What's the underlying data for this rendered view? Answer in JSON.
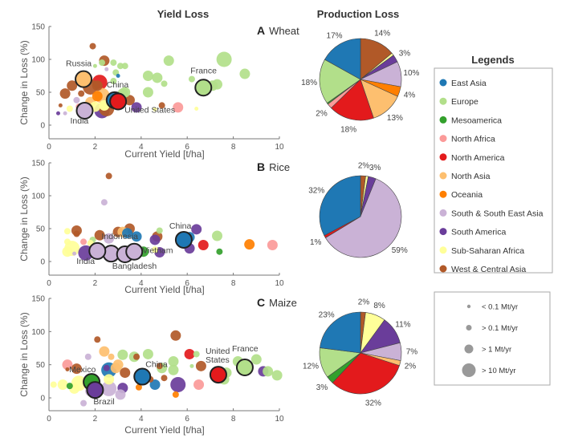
{
  "titles": {
    "yield_loss": "Yield Loss",
    "production_loss": "Production Loss"
  },
  "colors": {
    "East Asia": "#1f78b4",
    "Europe": "#b2df8a",
    "Mesoamerica": "#33a02c",
    "North Africa": "#fb9a99",
    "North America": "#e31a1c",
    "North Asia": "#fdbf6f",
    "Oceania": "#ff7f00",
    "South & South East Asia": "#cab2d6",
    "South America": "#6a3d9a",
    "Sub-Saharan Africa": "#ffff99",
    "West & Central Asia": "#b15928"
  },
  "legend": {
    "title": "Legends",
    "regions": [
      "East Asia",
      "Europe",
      "Mesoamerica",
      "North Africa",
      "North America",
      "North Asia",
      "Oceania",
      "South & South East Asia",
      "South America",
      "Sub-Saharan Africa",
      "West & Central Asia"
    ],
    "sizes": [
      "< 0.1 Mt/yr",
      "> 0.1 Mt/yr",
      "> 1 Mt/yr",
      "> 10 Mt/yr"
    ]
  },
  "chart_data": [
    {
      "type": "scatter",
      "panel": "A",
      "crop": "Wheat",
      "xlabel": "Current Yield [t/ha]",
      "ylabel": "Change in Loss (%)",
      "xlim": [
        0,
        10
      ],
      "ylim": [
        -20,
        150
      ],
      "xticks": [
        0,
        2,
        4,
        6,
        8,
        10
      ],
      "yticks": [
        0,
        50,
        100,
        150
      ],
      "point_format": [
        "current_yield",
        "change_in_loss",
        "region_index",
        "size_class"
      ],
      "points": [
        [
          1.9,
          120,
          10,
          1
        ],
        [
          2.4,
          98,
          10,
          2
        ],
        [
          2.3,
          95,
          1,
          1
        ],
        [
          2.0,
          90,
          1,
          0
        ],
        [
          2.8,
          95,
          1,
          1
        ],
        [
          3.1,
          90,
          1,
          1
        ],
        [
          3.3,
          90,
          1,
          1
        ],
        [
          2.5,
          85,
          7,
          0
        ],
        [
          2.9,
          80,
          1,
          1
        ],
        [
          3.0,
          75,
          0,
          0
        ],
        [
          2.2,
          65,
          4,
          3
        ],
        [
          2.8,
          67,
          1,
          1
        ],
        [
          1.0,
          60,
          10,
          2
        ],
        [
          0.7,
          48,
          10,
          2
        ],
        [
          1.8,
          58,
          10,
          3
        ],
        [
          2.1,
          60,
          10,
          2
        ],
        [
          2.3,
          45,
          5,
          3
        ],
        [
          1.4,
          48,
          10,
          1
        ],
        [
          1.2,
          38,
          7,
          1
        ],
        [
          1.8,
          35,
          5,
          2
        ],
        [
          2.0,
          28,
          9,
          2
        ],
        [
          2.4,
          30,
          9,
          2
        ],
        [
          2.3,
          22,
          8,
          3
        ],
        [
          2.5,
          25,
          10,
          3
        ],
        [
          3.5,
          38,
          10,
          2
        ],
        [
          3.8,
          27,
          8,
          2
        ],
        [
          3.2,
          48,
          1,
          2
        ],
        [
          3.3,
          50,
          1,
          2
        ],
        [
          0.4,
          18,
          8,
          0
        ],
        [
          0.7,
          18,
          7,
          0
        ],
        [
          0.5,
          30,
          10,
          0
        ],
        [
          0.9,
          25,
          9,
          1
        ],
        [
          1.3,
          28,
          3,
          1
        ],
        [
          4.3,
          75,
          1,
          2
        ],
        [
          4.7,
          72,
          1,
          2
        ],
        [
          5.2,
          98,
          1,
          2
        ],
        [
          5.0,
          63,
          1,
          1
        ],
        [
          4.3,
          50,
          1,
          2
        ],
        [
          4.6,
          24,
          9,
          0
        ],
        [
          4.9,
          30,
          10,
          1
        ],
        [
          5.6,
          27,
          3,
          2
        ],
        [
          6.2,
          70,
          1,
          1
        ],
        [
          6.4,
          25,
          9,
          0
        ],
        [
          7.1,
          60,
          1,
          2
        ],
        [
          7.3,
          62,
          1,
          2
        ],
        [
          7.6,
          100,
          1,
          3
        ],
        [
          8.5,
          78,
          1,
          2
        ],
        [
          2.1,
          44,
          6,
          2
        ],
        [
          2.4,
          30,
          9,
          2
        ]
      ],
      "labeled": [
        {
          "text": "Russia",
          "x": 1.5,
          "y": 70,
          "region_index": 5
        },
        {
          "text": "China",
          "x": 2.85,
          "y": 38,
          "region_index": 0
        },
        {
          "text": "United States",
          "x": 3.0,
          "y": 36,
          "region_index": 4
        },
        {
          "text": "India",
          "x": 1.55,
          "y": 22,
          "region_index": 7
        },
        {
          "text": "France",
          "x": 6.7,
          "y": 57,
          "region_index": 1
        }
      ]
    },
    {
      "type": "scatter",
      "panel": "B",
      "crop": "Rice",
      "xlabel": "Current Yield [t/ha]",
      "ylabel": "Change in Loss (%)",
      "xlim": [
        0,
        10
      ],
      "ylim": [
        -20,
        150
      ],
      "xticks": [
        0,
        2,
        4,
        6,
        8,
        10
      ],
      "yticks": [
        0,
        50,
        100,
        150
      ],
      "point_format": [
        "current_yield",
        "change_in_loss",
        "region_index",
        "size_class"
      ],
      "points": [
        [
          2.6,
          130,
          10,
          1
        ],
        [
          2.4,
          90,
          7,
          1
        ],
        [
          1.2,
          47,
          10,
          2
        ],
        [
          1.2,
          42,
          10,
          1
        ],
        [
          2.2,
          40,
          10,
          2
        ],
        [
          3.0,
          45,
          10,
          2
        ],
        [
          3.5,
          50,
          10,
          2
        ],
        [
          3.2,
          45,
          5,
          2
        ],
        [
          3.4,
          43,
          0,
          2
        ],
        [
          3.8,
          38,
          0,
          2
        ],
        [
          2.6,
          35,
          7,
          2
        ],
        [
          1.5,
          30,
          3,
          1
        ],
        [
          1.9,
          33,
          1,
          1
        ],
        [
          0.8,
          46,
          9,
          1
        ],
        [
          0.8,
          30,
          9,
          1
        ],
        [
          1.0,
          20,
          9,
          3
        ],
        [
          0.8,
          15,
          9,
          2
        ],
        [
          1.6,
          13,
          8,
          3
        ],
        [
          1.8,
          28,
          9,
          1
        ],
        [
          4.7,
          38,
          10,
          2
        ],
        [
          4.6,
          33,
          8,
          2
        ],
        [
          4.1,
          15,
          2,
          2
        ],
        [
          4.8,
          14,
          8,
          2
        ],
        [
          4.8,
          47,
          1,
          1
        ],
        [
          6.1,
          37,
          0,
          2
        ],
        [
          6.4,
          49,
          8,
          2
        ],
        [
          6.1,
          20,
          8,
          2
        ],
        [
          6.7,
          25,
          4,
          2
        ],
        [
          7.3,
          39,
          1,
          2
        ],
        [
          7.4,
          15,
          2,
          1
        ],
        [
          8.7,
          26,
          6,
          2
        ],
        [
          9.7,
          25,
          3,
          2
        ],
        [
          1.1,
          12,
          7,
          0
        ],
        [
          4.6,
          18,
          9,
          1
        ]
      ],
      "labeled": [
        {
          "text": "China",
          "x": 5.85,
          "y": 33,
          "region_index": 0
        },
        {
          "text": "Indonesia",
          "x": 2.7,
          "y": 12,
          "region_index": 7
        },
        {
          "text": "India",
          "x": 2.1,
          "y": 16,
          "region_index": 7
        },
        {
          "text": "Bangladesh",
          "x": 3.3,
          "y": 11,
          "region_index": 7
        },
        {
          "text": "Vietnam",
          "x": 3.7,
          "y": 15,
          "region_index": 7
        }
      ]
    },
    {
      "type": "scatter",
      "panel": "C",
      "crop": "Maize",
      "xlabel": "Current Yield [t/ha]",
      "ylabel": "Change in Loss (%)",
      "xlim": [
        0,
        10
      ],
      "ylim": [
        -20,
        150
      ],
      "xticks": [
        0,
        2,
        4,
        6,
        8,
        10
      ],
      "yticks": [
        0,
        50,
        100,
        150
      ],
      "point_format": [
        "current_yield",
        "change_in_loss",
        "region_index",
        "size_class"
      ],
      "points": [
        [
          2.1,
          88,
          10,
          1
        ],
        [
          1.7,
          62,
          7,
          1
        ],
        [
          0.8,
          50,
          3,
          2
        ],
        [
          0.8,
          43,
          10,
          0
        ],
        [
          1.2,
          44,
          10,
          2
        ],
        [
          2.4,
          70,
          5,
          2
        ],
        [
          2.7,
          62,
          5,
          1
        ],
        [
          2.5,
          45,
          8,
          1
        ],
        [
          2.6,
          42,
          0,
          3
        ],
        [
          2.9,
          45,
          5,
          2
        ],
        [
          3.0,
          50,
          5,
          2
        ],
        [
          3.3,
          38,
          10,
          2
        ],
        [
          3.2,
          65,
          1,
          2
        ],
        [
          3.7,
          62,
          1,
          2
        ],
        [
          3.8,
          62,
          10,
          1
        ],
        [
          4.3,
          66,
          1,
          2
        ],
        [
          4.8,
          48,
          10,
          1
        ],
        [
          4.9,
          45,
          1,
          2
        ],
        [
          5.5,
          94,
          10,
          2
        ],
        [
          5.4,
          55,
          1,
          2
        ],
        [
          5.4,
          42,
          1,
          2
        ],
        [
          5.0,
          30,
          10,
          1
        ],
        [
          4.4,
          28,
          10,
          1
        ],
        [
          4.6,
          20,
          0,
          2
        ],
        [
          3.9,
          16,
          6,
          1
        ],
        [
          5.5,
          5,
          6,
          1
        ],
        [
          5.6,
          20,
          8,
          3
        ],
        [
          6.1,
          66,
          4,
          2
        ],
        [
          6.4,
          66,
          1,
          1
        ],
        [
          6.6,
          48,
          10,
          2
        ],
        [
          6.2,
          48,
          1,
          0
        ],
        [
          6.5,
          20,
          3,
          2
        ],
        [
          7.7,
          38,
          1,
          2
        ],
        [
          7.6,
          28,
          1,
          2
        ],
        [
          8.2,
          55,
          1,
          2
        ],
        [
          9.0,
          58,
          1,
          2
        ],
        [
          9.3,
          40,
          8,
          2
        ],
        [
          9.5,
          40,
          1,
          2
        ],
        [
          9.9,
          34,
          1,
          2
        ],
        [
          2.6,
          28,
          9,
          2
        ],
        [
          3.2,
          15,
          8,
          2
        ],
        [
          3.1,
          5,
          7,
          2
        ],
        [
          1.5,
          -8,
          7,
          1
        ],
        [
          1.3,
          22,
          9,
          3
        ],
        [
          0.9,
          18,
          2,
          1
        ],
        [
          0.6,
          20,
          9,
          2
        ],
        [
          0.2,
          20,
          9,
          1
        ],
        [
          1.1,
          14,
          9,
          2
        ],
        [
          2.6,
          14,
          7,
          3
        ],
        [
          1.8,
          10,
          7,
          2
        ]
      ],
      "labeled": [
        {
          "text": "Mexico",
          "x": 1.85,
          "y": 24,
          "region_index": 2
        },
        {
          "text": "Brazil",
          "x": 2.0,
          "y": 12,
          "region_index": 8
        },
        {
          "text": "China",
          "x": 4.05,
          "y": 32,
          "region_index": 0
        },
        {
          "text": "United States",
          "x": 7.35,
          "y": 35,
          "region_index": 4
        },
        {
          "text": "France",
          "x": 8.5,
          "y": 46,
          "region_index": 1
        }
      ]
    },
    {
      "type": "pie",
      "panel": "A",
      "crop": "Wheat",
      "direction": "clockwise from top",
      "slices": [
        {
          "region_index": 10,
          "value": 14,
          "label": "14%"
        },
        {
          "region_index": 9,
          "value": 1
        },
        {
          "region_index": 8,
          "value": 3,
          "label": "3%"
        },
        {
          "region_index": 7,
          "value": 10,
          "label": "10%"
        },
        {
          "region_index": 6,
          "value": 4,
          "label": "4%"
        },
        {
          "region_index": 5,
          "value": 13,
          "label": "13%"
        },
        {
          "region_index": 4,
          "value": 18,
          "label": "18%"
        },
        {
          "region_index": 3,
          "value": 2,
          "label": "2%"
        },
        {
          "region_index": 2,
          "value": 0.5
        },
        {
          "region_index": 1,
          "value": 18,
          "label": "18%"
        },
        {
          "region_index": 0,
          "value": 17,
          "label": "17%"
        }
      ]
    },
    {
      "type": "pie",
      "panel": "B",
      "crop": "Rice",
      "direction": "clockwise from top",
      "slices": [
        {
          "region_index": 10,
          "value": 2,
          "label": "2%"
        },
        {
          "region_index": 9,
          "value": 1
        },
        {
          "region_index": 8,
          "value": 3,
          "label": "3%"
        },
        {
          "region_index": 7,
          "value": 59,
          "label": "59%"
        },
        {
          "region_index": 4,
          "value": 1,
          "label": "1%"
        },
        {
          "region_index": 0,
          "value": 32,
          "label": "32%"
        }
      ]
    },
    {
      "type": "pie",
      "panel": "C",
      "crop": "Maize",
      "direction": "clockwise from top",
      "slices": [
        {
          "region_index": 10,
          "value": 2,
          "label": "2%"
        },
        {
          "region_index": 9,
          "value": 8,
          "label": "8%"
        },
        {
          "region_index": 8,
          "value": 11,
          "label": "11%"
        },
        {
          "region_index": 7,
          "value": 7,
          "label": "7%"
        },
        {
          "region_index": 5,
          "value": 2,
          "label": "2%"
        },
        {
          "region_index": 4,
          "value": 32,
          "label": "32%"
        },
        {
          "region_index": 2,
          "value": 3,
          "label": "3%"
        },
        {
          "region_index": 1,
          "value": 12,
          "label": "12%"
        },
        {
          "region_index": 0,
          "value": 23,
          "label": "23%"
        }
      ]
    }
  ]
}
